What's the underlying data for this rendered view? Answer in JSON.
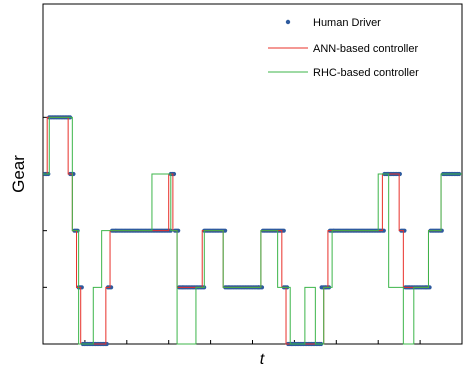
{
  "chart_data": {
    "type": "line",
    "title": "",
    "xlabel": "t",
    "ylabel": "Gear",
    "xlim": [
      0,
      100
    ],
    "ylim": [
      0,
      6
    ],
    "grid": false,
    "legend_position": "top-right",
    "legend": [
      {
        "label": "Human Driver",
        "color": "#2e5a9e",
        "marker": "dot"
      },
      {
        "label": "ANN-based controller",
        "color": "#e8302a",
        "marker": "line"
      },
      {
        "label": "RHC-based controller",
        "color": "#3cb54a",
        "marker": "line"
      }
    ],
    "series": [
      {
        "name": "Human Driver",
        "color": "#2e5a9e",
        "style": "dots",
        "segments": [
          {
            "x0": 0.5,
            "x1": 1.5,
            "y": 3
          },
          {
            "x0": 1.5,
            "x1": 6.5,
            "y": 4
          },
          {
            "x0": 6.5,
            "x1": 7.5,
            "y": 3
          },
          {
            "x0": 7.5,
            "x1": 8.5,
            "y": 2
          },
          {
            "x0": 8.5,
            "x1": 9.5,
            "y": 1
          },
          {
            "x0": 9.5,
            "x1": 15.5,
            "y": 0
          },
          {
            "x0": 15.5,
            "x1": 16.5,
            "y": 1
          },
          {
            "x0": 16.5,
            "x1": 17.5,
            "y": 2
          },
          {
            "x0": 17.5,
            "x1": 30.5,
            "y": 2
          },
          {
            "x0": 30.5,
            "x1": 31.5,
            "y": 3
          },
          {
            "x0": 31.5,
            "x1": 32.5,
            "y": 2
          },
          {
            "x0": 32.5,
            "x1": 33.5,
            "y": 1
          },
          {
            "x0": 33.5,
            "x1": 38.5,
            "y": 1
          },
          {
            "x0": 38.5,
            "x1": 43.5,
            "y": 2
          },
          {
            "x0": 43.5,
            "x1": 44.5,
            "y": 1
          },
          {
            "x0": 44.5,
            "x1": 51.5,
            "y": 1
          },
          {
            "x0": 51.5,
            "x1": 52.5,
            "y": 1
          },
          {
            "x0": 52.5,
            "x1": 57.5,
            "y": 2
          },
          {
            "x0": 57.5,
            "x1": 58.5,
            "y": 1
          },
          {
            "x0": 58.5,
            "x1": 59.5,
            "y": 0
          },
          {
            "x0": 59.5,
            "x1": 66.5,
            "y": 0
          },
          {
            "x0": 66.5,
            "x1": 67.5,
            "y": 1
          },
          {
            "x0": 67.5,
            "x1": 68.5,
            "y": 1
          },
          {
            "x0": 68.5,
            "x1": 69.5,
            "y": 2
          },
          {
            "x0": 69.5,
            "x1": 81.5,
            "y": 2
          },
          {
            "x0": 81.5,
            "x1": 82.5,
            "y": 3
          },
          {
            "x0": 82.5,
            "x1": 85.5,
            "y": 3
          },
          {
            "x0": 85.5,
            "x1": 86.5,
            "y": 2
          },
          {
            "x0": 86.5,
            "x1": 87.5,
            "y": 1
          },
          {
            "x0": 87.5,
            "x1": 91.5,
            "y": 1
          },
          {
            "x0": 91.5,
            "x1": 92.5,
            "y": 1
          },
          {
            "x0": 92.5,
            "x1": 95.5,
            "y": 2
          },
          {
            "x0": 95.5,
            "x1": 99.5,
            "y": 3
          }
        ]
      },
      {
        "name": "ANN-based controller",
        "color": "#e8302a",
        "style": "step",
        "points": [
          [
            0,
            3
          ],
          [
            1,
            3
          ],
          [
            1,
            4
          ],
          [
            6,
            4
          ],
          [
            6,
            3
          ],
          [
            7,
            3
          ],
          [
            7,
            2
          ],
          [
            8,
            2
          ],
          [
            8,
            1
          ],
          [
            9,
            1
          ],
          [
            9,
            0
          ],
          [
            15,
            0
          ],
          [
            15,
            1
          ],
          [
            16,
            1
          ],
          [
            16,
            2
          ],
          [
            30,
            2
          ],
          [
            30,
            3
          ],
          [
            31,
            3
          ],
          [
            31,
            2
          ],
          [
            32,
            2
          ],
          [
            32,
            1
          ],
          [
            38,
            1
          ],
          [
            38,
            2
          ],
          [
            43,
            2
          ],
          [
            43,
            1
          ],
          [
            52,
            1
          ],
          [
            52,
            2
          ],
          [
            57,
            2
          ],
          [
            57,
            1
          ],
          [
            58,
            1
          ],
          [
            58,
            0
          ],
          [
            67,
            0
          ],
          [
            67,
            1
          ],
          [
            68,
            1
          ],
          [
            68,
            2
          ],
          [
            81,
            2
          ],
          [
            81,
            3
          ],
          [
            85,
            3
          ],
          [
            85,
            2
          ],
          [
            86,
            2
          ],
          [
            86,
            1
          ],
          [
            92,
            1
          ],
          [
            92,
            2
          ],
          [
            95,
            2
          ],
          [
            95,
            3
          ],
          [
            100,
            3
          ]
        ]
      },
      {
        "name": "RHC-based controller",
        "color": "#3cb54a",
        "style": "step",
        "points": [
          [
            0,
            3
          ],
          [
            1.5,
            3
          ],
          [
            1.5,
            4
          ],
          [
            7,
            4
          ],
          [
            7,
            2
          ],
          [
            8.5,
            2
          ],
          [
            8.5,
            0
          ],
          [
            12,
            0
          ],
          [
            12,
            1
          ],
          [
            14,
            1
          ],
          [
            14,
            2
          ],
          [
            26,
            2
          ],
          [
            26,
            3
          ],
          [
            30.5,
            3
          ],
          [
            30.5,
            2
          ],
          [
            32,
            2
          ],
          [
            32,
            0
          ],
          [
            36.5,
            0
          ],
          [
            36.5,
            1
          ],
          [
            38.5,
            1
          ],
          [
            38.5,
            2
          ],
          [
            43,
            2
          ],
          [
            43,
            1
          ],
          [
            52,
            1
          ],
          [
            52,
            2
          ],
          [
            56,
            2
          ],
          [
            56,
            1
          ],
          [
            59,
            1
          ],
          [
            59,
            0
          ],
          [
            62.5,
            0
          ],
          [
            62.5,
            1
          ],
          [
            65,
            1
          ],
          [
            65,
            0
          ],
          [
            67,
            0
          ],
          [
            67,
            1
          ],
          [
            69,
            1
          ],
          [
            69,
            2
          ],
          [
            80,
            2
          ],
          [
            80,
            3
          ],
          [
            82.5,
            3
          ],
          [
            82.5,
            1
          ],
          [
            86,
            1
          ],
          [
            86,
            0
          ],
          [
            88.5,
            0
          ],
          [
            88.5,
            1
          ],
          [
            92,
            1
          ],
          [
            92,
            2
          ],
          [
            95,
            2
          ],
          [
            95,
            3
          ],
          [
            100,
            3
          ]
        ]
      }
    ]
  }
}
